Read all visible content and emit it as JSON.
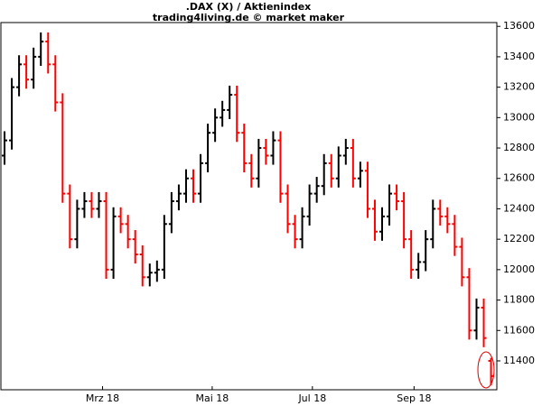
{
  "chart_data": {
    "type": "ohlc",
    "title": ".DAX (X) / Aktienindex",
    "subtitle": "trading4living.de © market maker",
    "open": [
      12750,
      12850,
      13200,
      13350,
      13250,
      13400,
      13500,
      13350,
      13100,
      12500,
      12200,
      12400,
      12450,
      12400,
      12450,
      12000,
      12350,
      12300,
      12200,
      12100,
      11950,
      11980,
      12000,
      12300,
      12450,
      12500,
      12600,
      12500,
      12700,
      12900,
      13000,
      13050,
      13150,
      12900,
      12700,
      12600,
      12800,
      12750,
      12850,
      12500,
      12300,
      12200,
      12350,
      12500,
      12550,
      12700,
      12600,
      12750,
      12800,
      12600,
      12650,
      12400,
      12250,
      12350,
      12500,
      12450,
      12200,
      12000,
      12050,
      12200,
      12400,
      12350,
      12300,
      12150,
      11950,
      11600,
      11750,
      11400
    ],
    "high": [
      12910,
      13260,
      13410,
      13410,
      13460,
      13560,
      13560,
      13410,
      13160,
      12560,
      12460,
      12510,
      12510,
      12510,
      12510,
      12410,
      12410,
      12360,
      12260,
      12160,
      12040,
      12060,
      12360,
      12510,
      12560,
      12660,
      12660,
      12760,
      12960,
      13060,
      13110,
      13210,
      13210,
      12960,
      12760,
      12860,
      12860,
      12910,
      12910,
      12560,
      12360,
      12410,
      12560,
      12610,
      12760,
      12760,
      12810,
      12860,
      12860,
      12710,
      12710,
      12460,
      12410,
      12560,
      12560,
      12510,
      12260,
      12110,
      12260,
      12460,
      12460,
      12410,
      12360,
      12210,
      12010,
      11810,
      11810,
      11420
    ],
    "low": [
      12690,
      12790,
      13140,
      13190,
      13190,
      13340,
      13290,
      13040,
      12440,
      12140,
      12140,
      12340,
      12340,
      12340,
      11940,
      11940,
      12240,
      12140,
      12040,
      11890,
      11890,
      11920,
      11940,
      12240,
      12390,
      12440,
      12440,
      12440,
      12640,
      12840,
      12940,
      12990,
      12840,
      12640,
      12540,
      12540,
      12690,
      12690,
      12440,
      12240,
      12140,
      12140,
      12290,
      12440,
      12490,
      12540,
      12540,
      12690,
      12540,
      12540,
      12340,
      12190,
      12190,
      12290,
      12390,
      12140,
      11940,
      11940,
      11990,
      12140,
      12290,
      12240,
      12090,
      11890,
      11540,
      11540,
      11490,
      11240
    ],
    "close": [
      12850,
      13200,
      13350,
      13250,
      13400,
      13500,
      13350,
      13100,
      12500,
      12200,
      12400,
      12450,
      12400,
      12450,
      12000,
      12350,
      12300,
      12200,
      12100,
      11950,
      11980,
      12000,
      12300,
      12450,
      12500,
      12600,
      12500,
      12700,
      12900,
      13000,
      13050,
      13150,
      12900,
      12700,
      12600,
      12800,
      12750,
      12850,
      12500,
      12300,
      12200,
      12350,
      12500,
      12550,
      12700,
      12600,
      12750,
      12800,
      12600,
      12650,
      12400,
      12250,
      12350,
      12500,
      12450,
      12200,
      12000,
      12050,
      12200,
      12400,
      12350,
      12300,
      12150,
      11950,
      11600,
      11750,
      11550,
      11300
    ],
    "up_color": "#000000",
    "down_color": "#ff0000",
    "xlim": [
      -0.5,
      67.8
    ],
    "xticks": [
      {
        "value": 13.5,
        "label": "Mrz 18"
      },
      {
        "value": 28.6,
        "label": "Mai 18"
      },
      {
        "value": 42.4,
        "label": "Jul 18"
      },
      {
        "value": 56.4,
        "label": "Sep 18"
      }
    ],
    "ylim": [
      11210,
      13625
    ],
    "yticks": [
      11400,
      11600,
      11800,
      12000,
      12200,
      12400,
      12600,
      12800,
      13000,
      13200,
      13400,
      13600
    ]
  }
}
